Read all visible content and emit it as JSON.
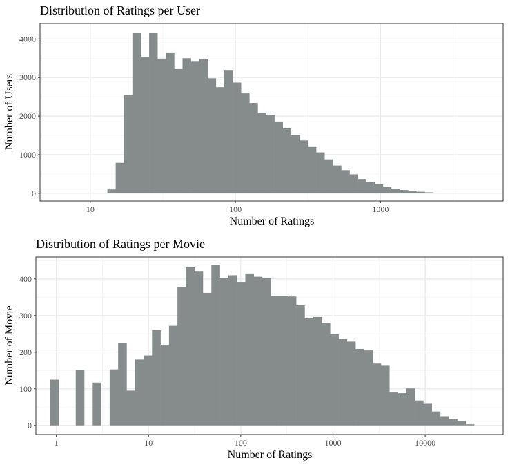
{
  "colors": {
    "bar": "#868c8b",
    "panel_border": "#333333",
    "grid_major": "#ebebeb",
    "grid_minor": "#f5f5f5",
    "tick_text": "#4d4d4d"
  },
  "chart_data": [
    {
      "type": "bar",
      "title": "Distribution of Ratings per User",
      "xlabel": "Number of Ratings",
      "ylabel": "Number of Users",
      "x_scale": "log10",
      "xlim": [
        4.5,
        7000
      ],
      "ylim": [
        -200,
        4400
      ],
      "x_ticks": [
        10,
        100,
        1000
      ],
      "x_tick_labels": [
        "10",
        "100",
        "1000"
      ],
      "y_ticks": [
        0,
        1000,
        2000,
        3000,
        4000
      ],
      "y_tick_labels": [
        "0",
        "1000",
        "2000",
        "3000",
        "4000"
      ],
      "grid": true,
      "bin_start": 13.1,
      "bin_end": 2630,
      "values": [
        100,
        790,
        2540,
        4150,
        3540,
        4150,
        3490,
        3650,
        3220,
        3500,
        3410,
        3470,
        2980,
        2750,
        3180,
        2870,
        2590,
        2340,
        2080,
        2030,
        1860,
        1680,
        1510,
        1370,
        1200,
        1060,
        880,
        720,
        600,
        490,
        370,
        290,
        230,
        170,
        120,
        85,
        65,
        40,
        25,
        12
      ]
    },
    {
      "type": "bar",
      "title": "Distribution of Ratings per Movie",
      "xlabel": "Number of Ratings",
      "ylabel": "Number of Movie",
      "x_scale": "log10",
      "xlim": [
        0.6,
        70000
      ],
      "ylim": [
        -25,
        460
      ],
      "x_ticks": [
        1,
        10,
        100,
        1000,
        10000
      ],
      "x_tick_labels": [
        "1",
        "10",
        "100",
        "1000",
        "10000"
      ],
      "y_ticks": [
        0,
        100,
        200,
        300,
        400
      ],
      "y_tick_labels": [
        "0",
        "100",
        "200",
        "300",
        "400"
      ],
      "grid": true,
      "bin_start": 0.86,
      "bin_end": 34000,
      "values": [
        125,
        0,
        0,
        151,
        0,
        117,
        0,
        153,
        226,
        95,
        180,
        191,
        260,
        220,
        272,
        378,
        432,
        420,
        362,
        438,
        403,
        410,
        392,
        415,
        406,
        402,
        354,
        354,
        352,
        328,
        292,
        296,
        280,
        249,
        236,
        229,
        209,
        205,
        169,
        163,
        90,
        88,
        101,
        68,
        59,
        38,
        25,
        17,
        12,
        3
      ]
    }
  ]
}
